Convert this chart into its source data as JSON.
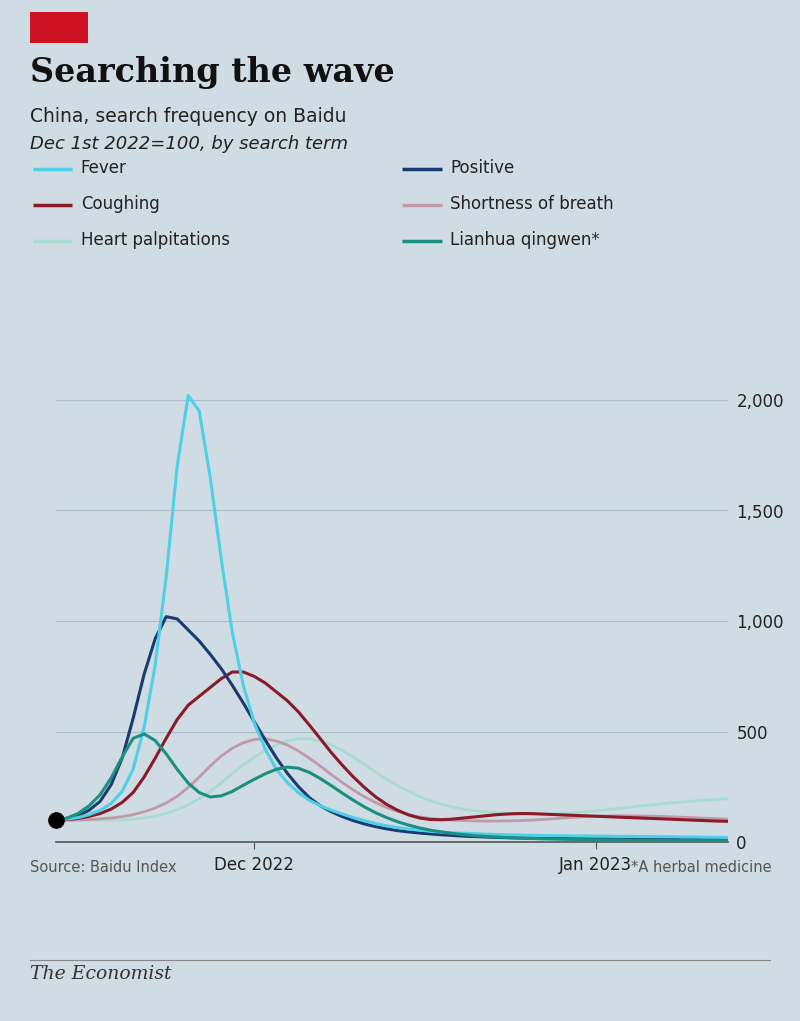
{
  "title": "Searching the wave",
  "subtitle1": "China, search frequency on Baidu",
  "subtitle2": "Dec 1st 2022=100, by search term",
  "source": "Source: Baidu Index",
  "footnote": "*A herbal medicine",
  "economist_label": "The Economist",
  "background_color": "#cfdce3",
  "ylim": [
    0,
    2100
  ],
  "yticks": [
    0,
    500,
    1000,
    1500,
    2000
  ],
  "red_box_color": "#cc1122",
  "series": {
    "Fever": {
      "color": "#4dd0e8",
      "linewidth": 2.2,
      "zorder": 6
    },
    "Positive": {
      "color": "#1a3a72",
      "linewidth": 2.2,
      "zorder": 5
    },
    "Coughing": {
      "color": "#8b1a2a",
      "linewidth": 2.2,
      "zorder": 4
    },
    "Shortness of breath": {
      "color": "#c09aa8",
      "linewidth": 2.0,
      "zorder": 3
    },
    "Heart palpitations": {
      "color": "#a8dcd0",
      "linewidth": 2.0,
      "zorder": 2
    },
    "Lianhua qingwen*": {
      "color": "#1a9080",
      "linewidth": 2.2,
      "zorder": 7
    }
  },
  "n_points": 62,
  "dec_tick_idx": 18,
  "jan_tick_idx": 49,
  "dot_idx": 0,
  "dot_value": 100,
  "fever_data": [
    100,
    105,
    112,
    125,
    145,
    175,
    230,
    330,
    520,
    800,
    1200,
    1700,
    2020,
    1950,
    1650,
    1280,
    950,
    710,
    540,
    420,
    330,
    270,
    225,
    190,
    165,
    145,
    128,
    112,
    98,
    85,
    75,
    67,
    60,
    55,
    50,
    46,
    43,
    41,
    39,
    37,
    35,
    34,
    33,
    32,
    31,
    30,
    30,
    29,
    29,
    28,
    28,
    27,
    27,
    26,
    26,
    25,
    25,
    24,
    24,
    23,
    23,
    22
  ],
  "positive_data": [
    100,
    108,
    120,
    145,
    185,
    260,
    380,
    560,
    760,
    920,
    1020,
    1010,
    960,
    910,
    850,
    785,
    710,
    630,
    545,
    462,
    382,
    312,
    252,
    202,
    165,
    138,
    116,
    98,
    83,
    71,
    61,
    53,
    47,
    42,
    38,
    34,
    31,
    28,
    26,
    24,
    22,
    21,
    20,
    19,
    18,
    18,
    17,
    17,
    16,
    16,
    16,
    15,
    15,
    15,
    14,
    14,
    14,
    13,
    13,
    13,
    12,
    12
  ],
  "coughing_data": [
    100,
    103,
    108,
    117,
    130,
    150,
    180,
    225,
    295,
    380,
    470,
    555,
    620,
    660,
    700,
    740,
    770,
    770,
    750,
    720,
    680,
    640,
    590,
    530,
    468,
    405,
    348,
    295,
    248,
    206,
    172,
    145,
    124,
    110,
    103,
    102,
    105,
    110,
    115,
    120,
    125,
    128,
    130,
    130,
    128,
    126,
    124,
    122,
    120,
    118,
    116,
    114,
    112,
    110,
    108,
    106,
    104,
    102,
    100,
    98,
    96,
    95
  ],
  "shortness_data": [
    100,
    100,
    101,
    103,
    106,
    110,
    116,
    125,
    138,
    155,
    178,
    208,
    248,
    295,
    345,
    390,
    425,
    450,
    465,
    468,
    458,
    440,
    413,
    380,
    344,
    306,
    270,
    236,
    206,
    180,
    158,
    140,
    126,
    115,
    108,
    103,
    100,
    98,
    97,
    96,
    96,
    97,
    98,
    100,
    103,
    106,
    110,
    113,
    116,
    118,
    119,
    120,
    120,
    119,
    118,
    117,
    115,
    113,
    111,
    109,
    107,
    105
  ],
  "heart_data": [
    100,
    100,
    100,
    100,
    100,
    100,
    102,
    105,
    110,
    118,
    130,
    148,
    170,
    198,
    230,
    268,
    310,
    350,
    385,
    415,
    440,
    458,
    468,
    468,
    458,
    440,
    415,
    385,
    352,
    318,
    285,
    256,
    230,
    207,
    188,
    172,
    160,
    150,
    143,
    138,
    134,
    131,
    129,
    128,
    128,
    129,
    131,
    134,
    138,
    143,
    148,
    153,
    158,
    164,
    169,
    174,
    179,
    183,
    187,
    191,
    194,
    197
  ],
  "lianhua_data": [
    100,
    110,
    130,
    165,
    215,
    290,
    385,
    470,
    490,
    460,
    400,
    330,
    268,
    225,
    205,
    210,
    230,
    258,
    285,
    310,
    330,
    340,
    335,
    316,
    288,
    256,
    222,
    190,
    160,
    134,
    112,
    93,
    78,
    65,
    55,
    47,
    40,
    35,
    30,
    27,
    24,
    21,
    19,
    18,
    16,
    15,
    14,
    13,
    13,
    12,
    11,
    11,
    10,
    10,
    10,
    9,
    9,
    9,
    8,
    8,
    8,
    8
  ]
}
